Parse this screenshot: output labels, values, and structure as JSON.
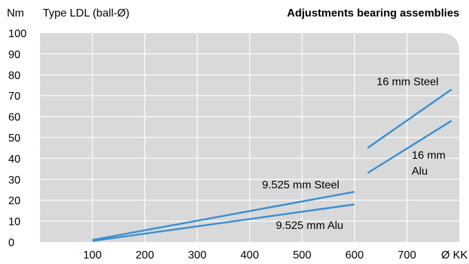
{
  "chart_data": {
    "type": "line",
    "title": "Adjustments bearing assemblies",
    "subtitle": "Type LDL (ball-Ø)",
    "ylabel": "Nm",
    "xlabel": "Ø KK",
    "ylim": [
      0,
      100
    ],
    "xlim": [
      0,
      800
    ],
    "x_ticks": [
      100,
      200,
      300,
      400,
      500,
      600,
      700
    ],
    "y_ticks": [
      0,
      10,
      20,
      30,
      40,
      50,
      60,
      70,
      80,
      90,
      100
    ],
    "grid": true,
    "series": [
      {
        "name": "9.525 mm Steel",
        "color": "#3a8fd1",
        "x": [
          100,
          600
        ],
        "y": [
          1,
          24
        ]
      },
      {
        "name": "9.525 mm Alu",
        "color": "#3a8fd1",
        "x": [
          100,
          600
        ],
        "y": [
          0.5,
          18
        ]
      },
      {
        "name": "16 mm Steel",
        "color": "#3a8fd1",
        "x": [
          625,
          785
        ],
        "y": [
          45,
          73
        ]
      },
      {
        "name": "16 mm Alu",
        "color": "#3a8fd1",
        "x": [
          625,
          785
        ],
        "y": [
          33,
          58
        ]
      }
    ],
    "annotations": [
      {
        "text": "16 mm Steel",
        "series": 2
      },
      {
        "text": "16 mm",
        "series": 3
      },
      {
        "text": "Alu",
        "series": 3
      },
      {
        "text": "9.525 mm Steel",
        "series": 0
      },
      {
        "text": "9.525 mm Alu",
        "series": 1
      }
    ]
  },
  "colors": {
    "plot_background": "#d9d9d9",
    "gridline": "#ffffff",
    "line": "#3a8fd1"
  }
}
